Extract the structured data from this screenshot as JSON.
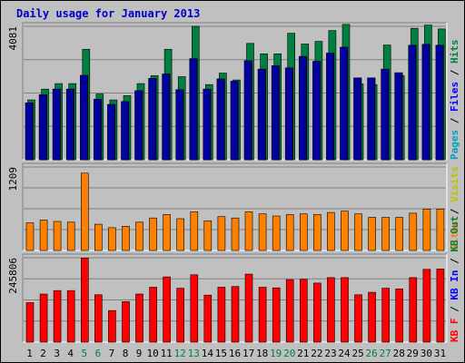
{
  "title": "Daily usage for January 2013",
  "chart_data": [
    {
      "type": "bar",
      "panel": "top",
      "ytick_label": "4081",
      "ymax": 4081,
      "legend": [
        "Pages",
        "Files",
        "Hits"
      ],
      "legend_separator": " / ",
      "categories": [
        "1",
        "2",
        "3",
        "4",
        "5",
        "6",
        "7",
        "8",
        "9",
        "10",
        "11",
        "12",
        "13",
        "14",
        "15",
        "16",
        "17",
        "18",
        "19",
        "20",
        "21",
        "22",
        "23",
        "24",
        "25",
        "26",
        "27",
        "28",
        "29",
        "30",
        "31"
      ],
      "weekend_days": [
        "5",
        "6",
        "12",
        "13",
        "19",
        "20",
        "26",
        "27"
      ],
      "series": [
        {
          "name": "Hits",
          "color": "#008040",
          "values": [
            1830,
            2160,
            2330,
            2330,
            3380,
            2010,
            1830,
            1960,
            2330,
            2570,
            3380,
            2540,
            4080,
            2300,
            2650,
            2440,
            3560,
            3240,
            3240,
            3870,
            3540,
            3620,
            3950,
            4140,
            2320,
            2300,
            3510,
            2570,
            4020,
            4120,
            4000
          ]
        },
        {
          "name": "Files",
          "color": "#0000ff",
          "values": [
            1740,
            1990,
            2160,
            2160,
            2580,
            1850,
            1690,
            1780,
            2110,
            2490,
            2620,
            2140,
            3090,
            2160,
            2470,
            2400,
            3030,
            2770,
            2880,
            2810,
            3160,
            3010,
            3260,
            3440,
            2500,
            2500,
            2770,
            2660,
            3500,
            3530,
            3500
          ]
        },
        {
          "name": "Pages",
          "color": "#0000a0",
          "values": [
            1740,
            1990,
            2160,
            2160,
            2580,
            1850,
            1690,
            1780,
            2110,
            2490,
            2620,
            2140,
            3090,
            2160,
            2470,
            2400,
            3030,
            2770,
            2880,
            2810,
            3160,
            3010,
            3260,
            3440,
            2500,
            2500,
            2770,
            2660,
            3500,
            3530,
            3500
          ]
        }
      ]
    },
    {
      "type": "bar",
      "panel": "middle",
      "ytick_label": "1209",
      "ymax": 1209,
      "legend": [
        "Sites",
        "Visits"
      ],
      "legend_separator": " / ",
      "series": [
        {
          "name": "Visits",
          "color": "#ff8000",
          "values": [
            400,
            440,
            420,
            410,
            1120,
            380,
            330,
            350,
            410,
            470,
            520,
            460,
            560,
            430,
            490,
            470,
            560,
            530,
            500,
            520,
            530,
            520,
            550,
            570,
            530,
            480,
            480,
            480,
            540,
            600,
            600
          ]
        }
      ]
    },
    {
      "type": "bar",
      "panel": "bottom",
      "ytick_label": "245806",
      "ymax": 245806,
      "legend": [
        "KB F",
        "KB In",
        "KB Out"
      ],
      "legend_separator": " / ",
      "series": [
        {
          "name": "KB F",
          "color": "#ff0000",
          "values": [
            115000,
            140000,
            150000,
            150000,
            245000,
            138000,
            92000,
            118000,
            140000,
            160000,
            190000,
            157000,
            196000,
            137000,
            160000,
            162000,
            198000,
            160000,
            158000,
            182000,
            183000,
            172000,
            188000,
            188000,
            138000,
            145000,
            157000,
            155000,
            188000,
            212000,
            213000
          ]
        }
      ]
    }
  ]
}
